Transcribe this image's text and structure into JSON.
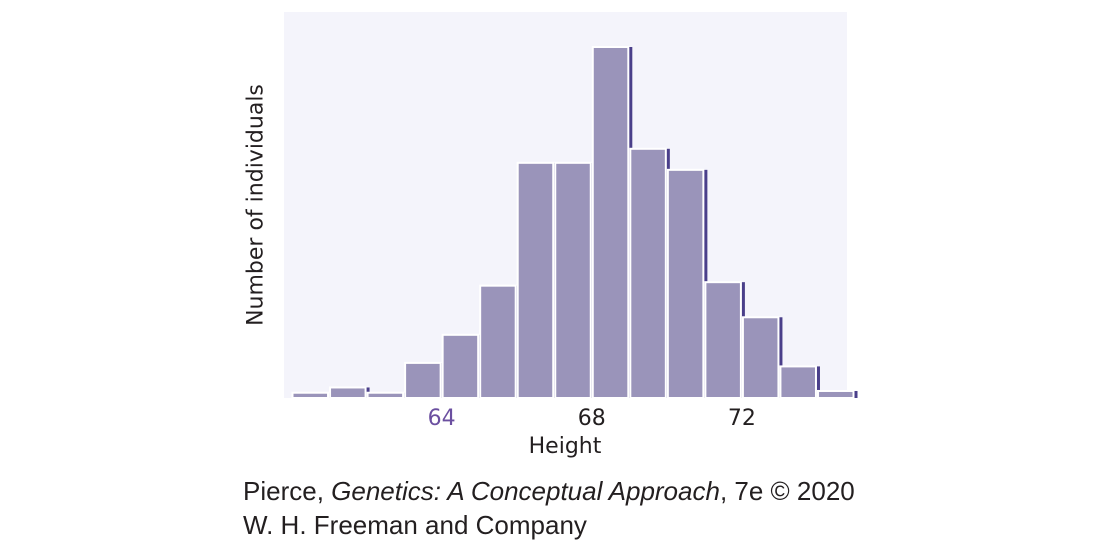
{
  "chart_data": {
    "type": "bar",
    "title": "",
    "xlabel": "Height",
    "ylabel": "Number of individuals",
    "bin_width": 1,
    "x": [
      60,
      61,
      62,
      63,
      64,
      65,
      66,
      67,
      68,
      69,
      70,
      71,
      72,
      73,
      74
    ],
    "values": [
      1.5,
      3,
      1.5,
      10,
      18,
      32,
      67,
      67,
      100,
      71,
      65,
      33,
      23,
      9,
      2
    ],
    "value_unit": "relative (tallest bar = 100)",
    "xticks": [
      {
        "value": 64,
        "label": "64",
        "color": "#6b4fa0"
      },
      {
        "value": 68,
        "label": "68",
        "color": "#231f20"
      },
      {
        "value": 72,
        "label": "72",
        "color": "#231f20"
      }
    ],
    "xlim": [
      59.8,
      74.8
    ],
    "ylim": [
      0,
      100
    ],
    "grid": false,
    "colors": {
      "bar": "#9a94ba",
      "bar_shadow": "#4a3f8a",
      "bar_edge": "#ffffff",
      "plot_background": "#f4f4fb"
    }
  },
  "credit": {
    "author": "Pierce, ",
    "book_title": "Genetics: A Conceptual Approach",
    "edition": ", 7e © 2020",
    "publisher": "W. H. Freeman and Company"
  }
}
